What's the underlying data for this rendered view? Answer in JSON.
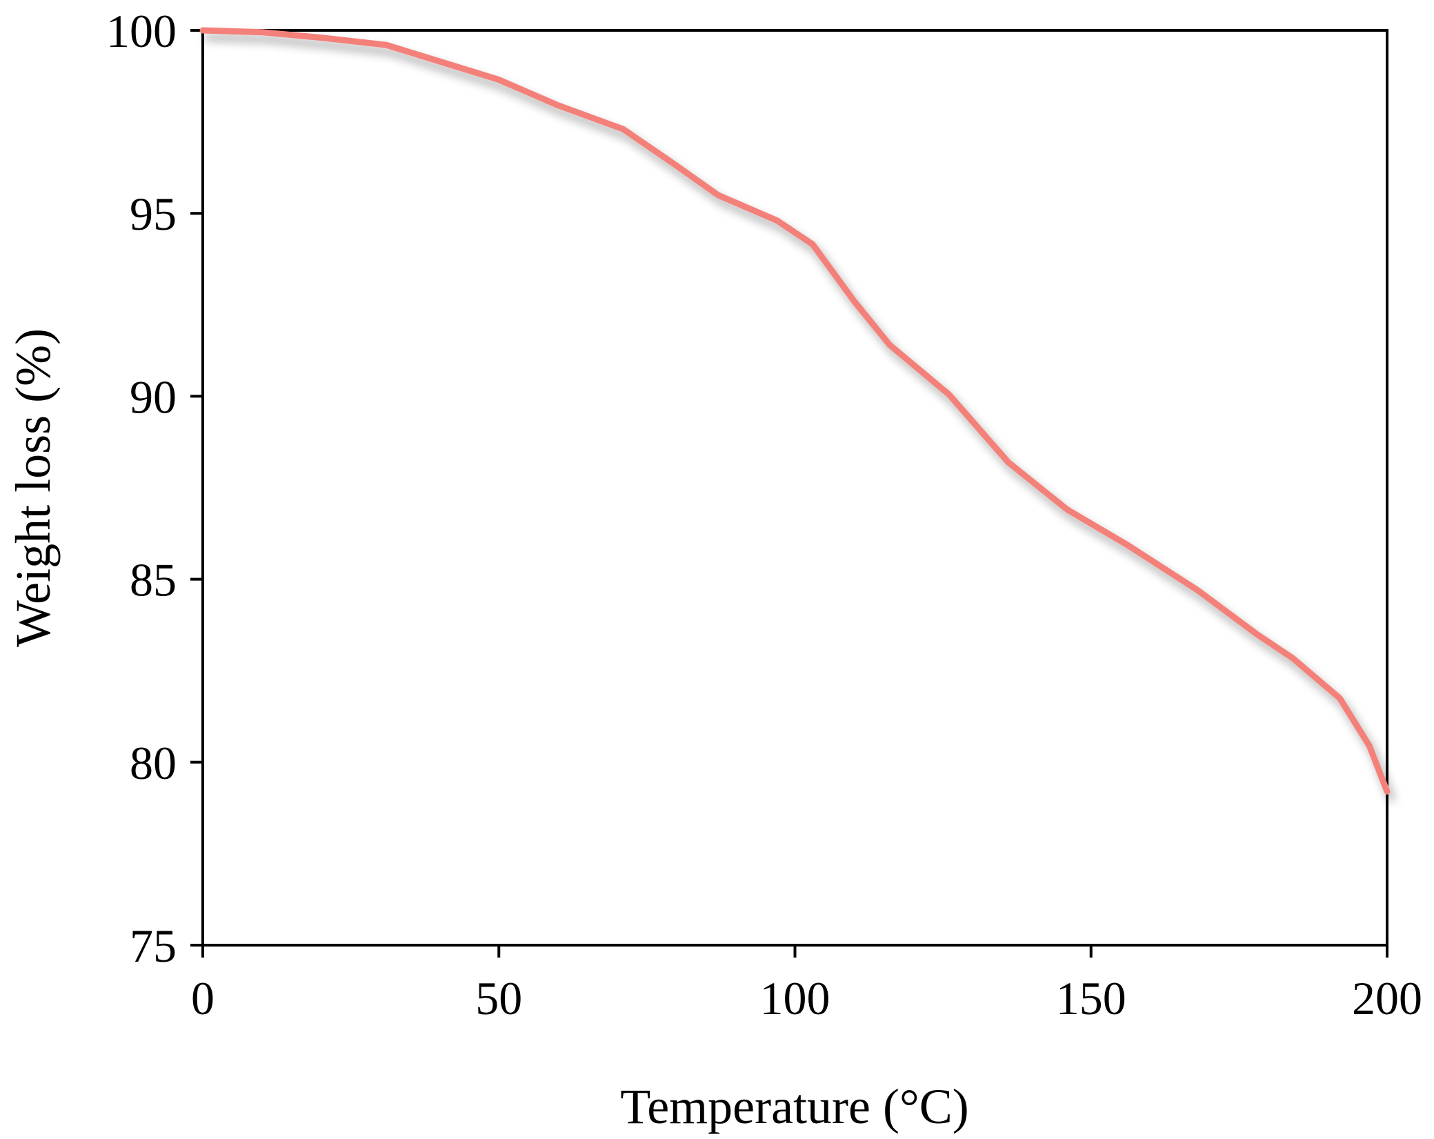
{
  "chart_data": {
    "type": "line",
    "title": "",
    "xlabel": "Temperature (°C)",
    "ylabel": "Weight loss (%)",
    "xlim": [
      0,
      200
    ],
    "ylim": [
      75,
      100
    ],
    "xticks": [
      0,
      50,
      100,
      150,
      200
    ],
    "yticks": [
      75,
      80,
      85,
      90,
      95,
      100
    ],
    "grid": false,
    "legend": "none",
    "series": [
      {
        "color": "#f4807a",
        "x": [
          0,
          10,
          20,
          31,
          40,
          50,
          60,
          71,
          80,
          87,
          97,
          103,
          110,
          116,
          126,
          136,
          146,
          156,
          168,
          178,
          184,
          192,
          197,
          200
        ],
        "y": [
          100,
          99.95,
          99.8,
          99.6,
          99.15,
          98.65,
          97.95,
          97.3,
          96.3,
          95.5,
          94.8,
          94.15,
          92.6,
          91.4,
          90.05,
          88.2,
          86.9,
          85.95,
          84.7,
          83.5,
          82.85,
          81.75,
          80.45,
          79.2
        ]
      }
    ]
  }
}
